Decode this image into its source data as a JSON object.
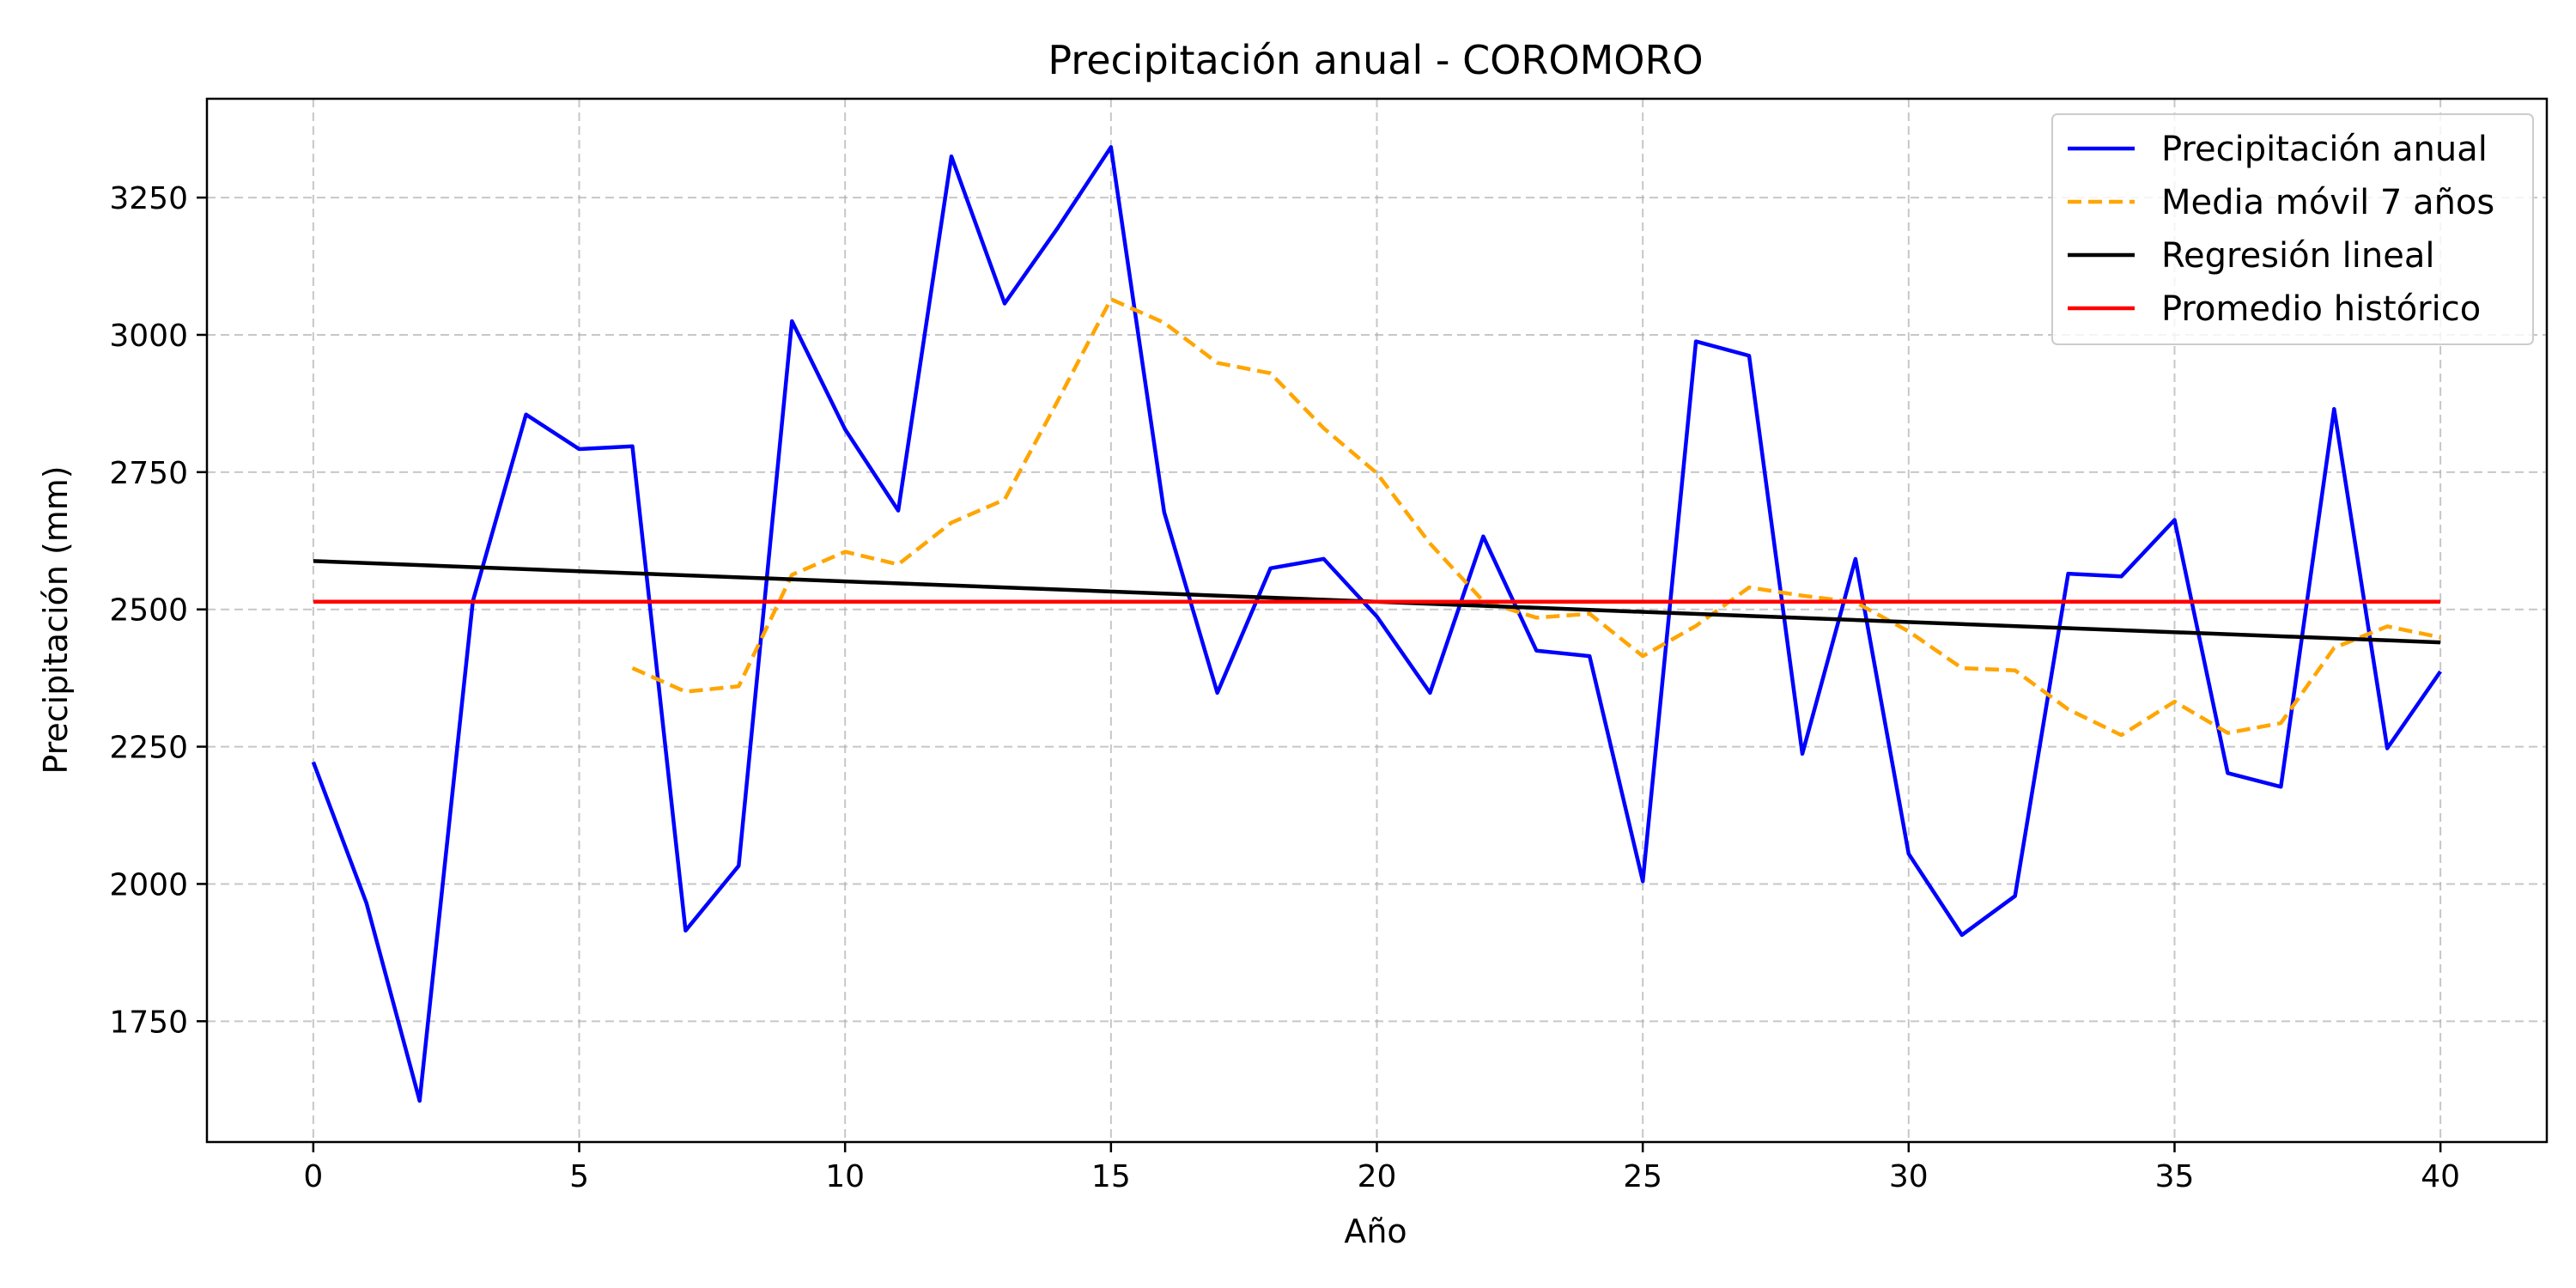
{
  "chart_data": {
    "type": "line",
    "title": "Precipitación anual - COROMORO",
    "xlabel": "Año",
    "ylabel": "Precipitación (mm)",
    "xlim": [
      -2,
      42
    ],
    "ylim": [
      1530,
      3430
    ],
    "xticks": [
      0,
      5,
      10,
      15,
      20,
      25,
      30,
      35,
      40
    ],
    "yticks": [
      1750,
      2000,
      2250,
      2500,
      2750,
      3000,
      3250
    ],
    "grid": true,
    "legend_position": "top-right",
    "series": [
      {
        "name": "Precipitación anual",
        "style": "solid",
        "color": "#0000ff",
        "x": [
          0,
          1,
          2,
          3,
          4,
          5,
          6,
          7,
          8,
          9,
          10,
          11,
          12,
          13,
          14,
          15,
          16,
          17,
          18,
          19,
          20,
          21,
          22,
          23,
          24,
          25,
          26,
          27,
          28,
          29,
          30,
          31,
          32,
          33,
          34,
          35,
          36,
          37,
          38,
          39,
          40
        ],
        "y": [
          2222,
          1965,
          1605,
          2515,
          2855,
          2792,
          2797,
          1915,
          2033,
          3025,
          2828,
          2680,
          3325,
          3057,
          3195,
          3342,
          2677,
          2348,
          2575,
          2592,
          2487,
          2348,
          2633,
          2425,
          2415,
          2005,
          2988,
          2962,
          2237,
          2592,
          2055,
          1907,
          1978,
          2565,
          2560,
          2663,
          2202,
          2177,
          2865,
          2247,
          2387
        ]
      },
      {
        "name": "Media móvil 7 años",
        "style": "dashed",
        "color": "#ffa500",
        "x": [
          6,
          7,
          8,
          9,
          10,
          11,
          12,
          13,
          14,
          15,
          16,
          17,
          18,
          19,
          20,
          21,
          22,
          23,
          24,
          25,
          26,
          27,
          28,
          29,
          30,
          31,
          32,
          33,
          34,
          35,
          36,
          37,
          38,
          39,
          40
        ],
        "y": [
          2393,
          2350,
          2360,
          2563,
          2605,
          2582,
          2658,
          2700,
          2880,
          3065,
          3022,
          2949,
          2930,
          2830,
          2748,
          2620,
          2515,
          2485,
          2492,
          2415,
          2470,
          2540,
          2525,
          2513,
          2460,
          2393,
          2389,
          2318,
          2271,
          2332,
          2275,
          2293,
          2430,
          2469,
          2449
        ]
      },
      {
        "name": "Regresión lineal",
        "style": "solid",
        "color": "#000000",
        "x": [
          0,
          40
        ],
        "y": [
          2588,
          2440
        ]
      },
      {
        "name": "Promedio histórico",
        "style": "solid",
        "color": "#ff0000",
        "x": [
          0,
          40
        ],
        "y": [
          2514,
          2514
        ]
      }
    ]
  }
}
